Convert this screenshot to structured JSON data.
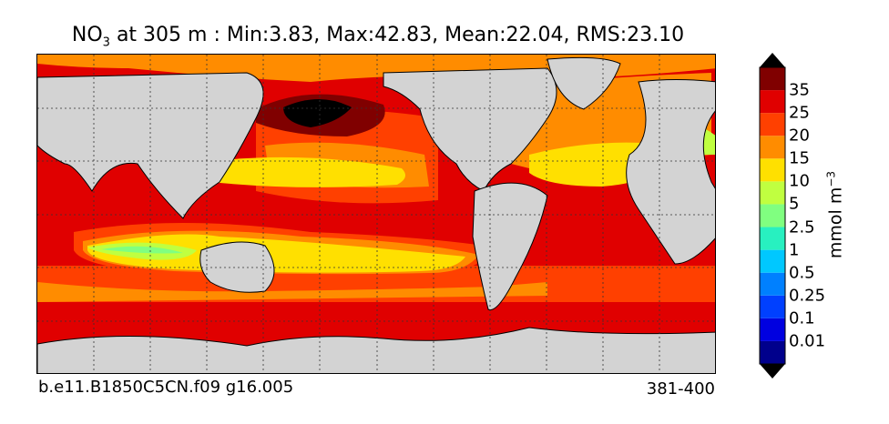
{
  "title": {
    "species": "NO",
    "species_sub": "3",
    "rest": " at 305 m : Min:3.83, Max:42.83, Mean:22.04, RMS:23.10"
  },
  "footer": {
    "case_name": "b.e11.B1850C5CN.f09 g16.005",
    "years": "381-400"
  },
  "colorbar": {
    "unit": "mmol m",
    "unit_exp": "−3",
    "levels": [
      "0.01",
      "0.1",
      "0.25",
      "0.5",
      "1",
      "2.5",
      "5",
      "10",
      "15",
      "20",
      "25",
      "35"
    ],
    "colors": [
      "#00008c",
      "#0000e0",
      "#0040ff",
      "#0080ff",
      "#00c8ff",
      "#28f0c0",
      "#80ff80",
      "#c0ff40",
      "#ffe000",
      "#ff8c00",
      "#ff4000",
      "#e00000",
      "#800000"
    ],
    "over_color": "#000000",
    "under_color": "#000000"
  },
  "map": {
    "land_color": "#d3d3d3",
    "ice_color": "#ffffff",
    "grid": true,
    "grid_style": "dotted"
  }
}
